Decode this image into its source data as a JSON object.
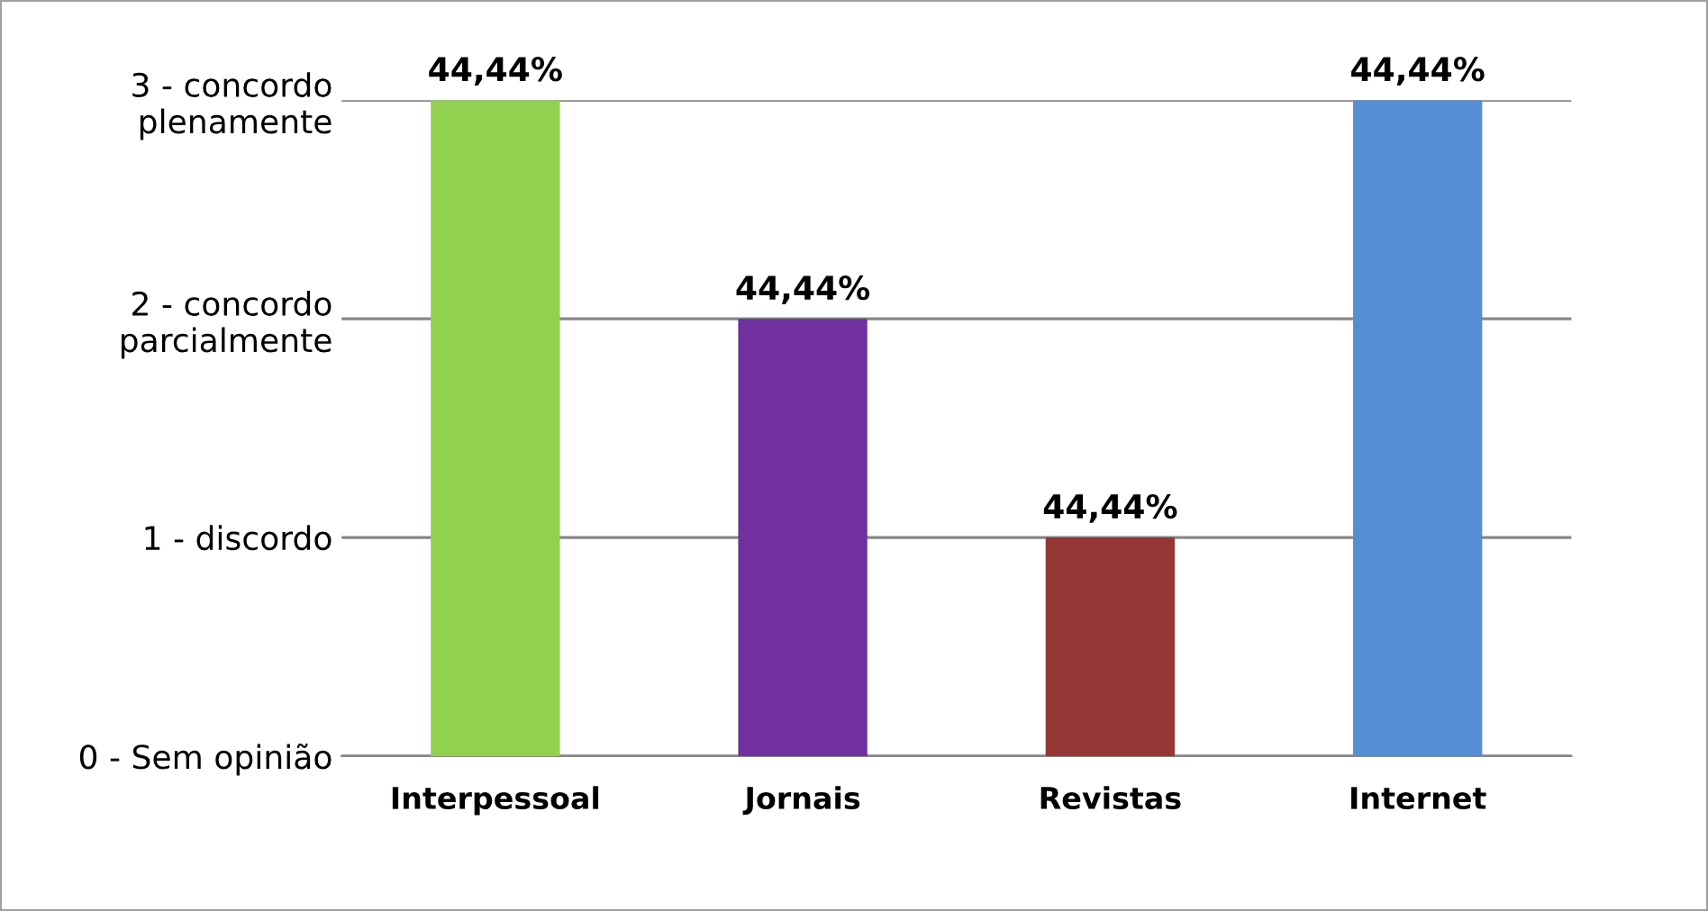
{
  "chart_data": {
    "type": "bar",
    "categories": [
      "Interpessoal",
      "Jornais",
      "Revistas",
      "Internet"
    ],
    "values": [
      3,
      2,
      1,
      3
    ],
    "colors": [
      "#92d050",
      "#7030a0",
      "#953735",
      "#558ed5"
    ],
    "annotations": [
      {
        "text": "44,44%",
        "x": "Interpessoal",
        "y": 3
      },
      {
        "text": "44,44%",
        "x": "Jornais",
        "y": 2
      },
      {
        "text": "44,44%",
        "x": "Revistas",
        "y": 1
      },
      {
        "text": "44,44%",
        "x": "Internet",
        "y": 3
      }
    ],
    "ylim": [
      0,
      3
    ],
    "yticks": [
      {
        "value": 0,
        "label": "0 - Sem opinião"
      },
      {
        "value": 1,
        "label": "1 - discordo"
      },
      {
        "value": 2,
        "label": "2 - concordo\nparcialmente"
      },
      {
        "value": 3,
        "label": "3 - concordo\nplenamente"
      }
    ],
    "grid": "y",
    "legend": false
  }
}
